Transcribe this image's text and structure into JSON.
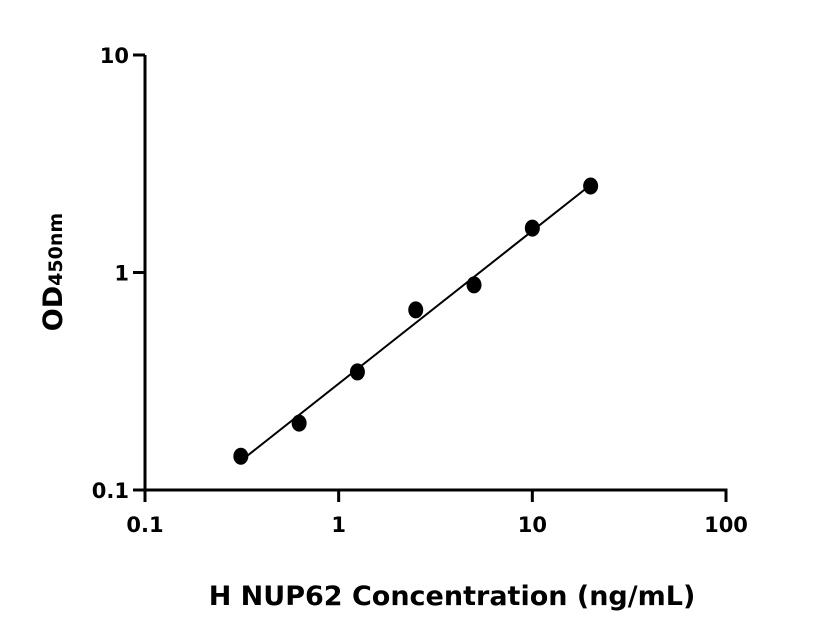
{
  "chart_data": {
    "type": "scatter",
    "title": "",
    "xlabel": "H NUP62 Concentration (ng/mL)",
    "ylabel": {
      "main": "OD",
      "subscript": "450nm"
    },
    "xscale": "log",
    "yscale": "log",
    "xlim": [
      0.1,
      100
    ],
    "ylim": [
      0.1,
      10
    ],
    "x_ticks": [
      {
        "value": 0.1,
        "label": "0.1"
      },
      {
        "value": 1,
        "label": "1"
      },
      {
        "value": 10,
        "label": "10"
      },
      {
        "value": 100,
        "label": "100"
      }
    ],
    "y_ticks": [
      {
        "value": 0.1,
        "label": "0.1"
      },
      {
        "value": 1,
        "label": "1"
      },
      {
        "value": 10,
        "label": "10"
      }
    ],
    "grid": false,
    "legend": "none",
    "series": [
      {
        "x": [
          0.3125,
          0.625,
          1.25,
          2.5,
          5,
          10,
          20
        ],
        "y": [
          0.143,
          0.203,
          0.349,
          0.673,
          0.877,
          1.6,
          2.5
        ],
        "marker": "circle",
        "color": "#000000",
        "fit": "linear regression on log-log"
      }
    ]
  }
}
